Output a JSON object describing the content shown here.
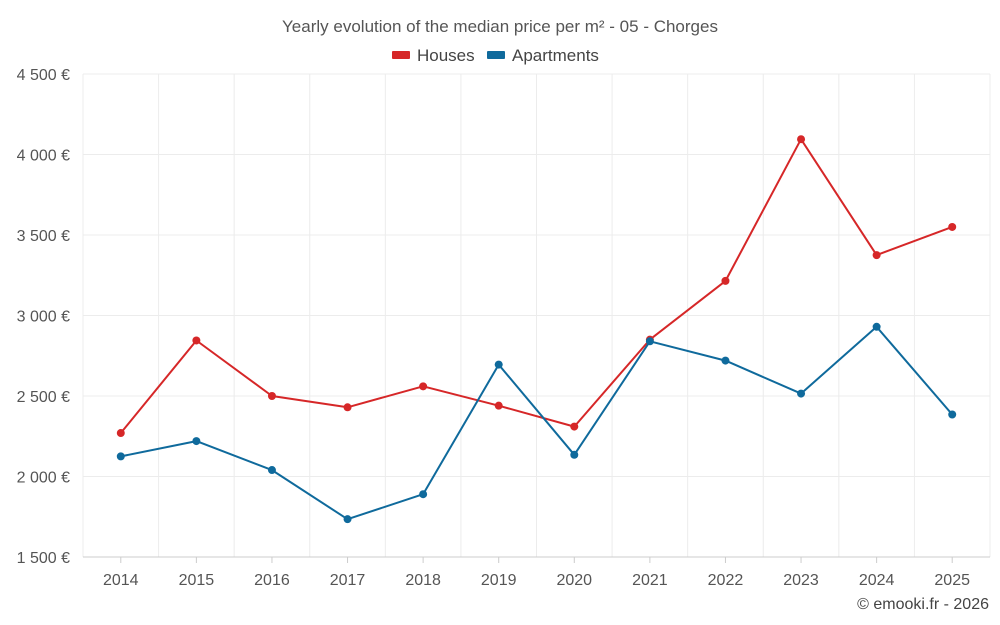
{
  "chart_data": {
    "type": "line",
    "title": "Yearly evolution of the median price per m² - 05 - Chorges",
    "xlabel": "",
    "ylabel": "",
    "categories": [
      "2014",
      "2015",
      "2016",
      "2017",
      "2018",
      "2019",
      "2020",
      "2021",
      "2022",
      "2023",
      "2024",
      "2025"
    ],
    "ylim": [
      1500,
      4500
    ],
    "yticks": [
      1500,
      2000,
      2500,
      3000,
      3500,
      4000,
      4500
    ],
    "ytick_labels": [
      "1 500 €",
      "2 000 €",
      "2 500 €",
      "3 000 €",
      "3 500 €",
      "4 000 €",
      "4 500 €"
    ],
    "grid": true,
    "legend_position": "top-center",
    "series": [
      {
        "name": "Houses",
        "color": "#d62728",
        "values": [
          2270,
          2845,
          2500,
          2430,
          2560,
          2440,
          2310,
          2850,
          3215,
          4095,
          3375,
          3550
        ]
      },
      {
        "name": "Apartments",
        "color": "#0f6a9c",
        "values": [
          2125,
          2220,
          2040,
          1735,
          1890,
          2695,
          2135,
          2840,
          2720,
          2515,
          2930,
          2385
        ]
      }
    ]
  },
  "credit": "© emooki.fr - 2026"
}
